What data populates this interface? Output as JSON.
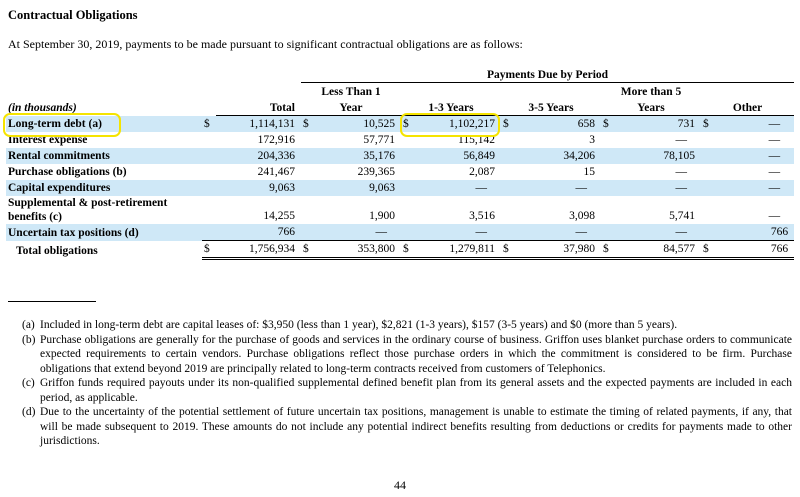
{
  "heading": "Contractual Obligations",
  "intro": "At September 30, 2019, payments to be made pursuant to significant contractual obligations are as follows:",
  "table": {
    "group_header": "Payments Due by Period",
    "units_label": "(in thousands)",
    "columns": {
      "total": "Total",
      "lt1_line1": "Less Than 1",
      "lt1_line2": "Year",
      "y13": "1-3 Years",
      "y35": "3-5 Years",
      "mt5_line1": "More than 5",
      "mt5_line2": "Years",
      "other": "Other"
    },
    "currency": "$",
    "rows": [
      {
        "label": "Long-term debt (a)",
        "total": "1,114,131",
        "lt1": "10,525",
        "y13": "1,102,217",
        "y35": "658",
        "mt5": "731",
        "other": "—"
      },
      {
        "label": "Interest expense",
        "total": "172,916",
        "lt1": "57,771",
        "y13": "115,142",
        "y35": "3",
        "mt5": "—",
        "other": "—"
      },
      {
        "label": "Rental commitments",
        "total": "204,336",
        "lt1": "35,176",
        "y13": "56,849",
        "y35": "34,206",
        "mt5": "78,105",
        "other": "—"
      },
      {
        "label": "Purchase obligations (b)",
        "total": "241,467",
        "lt1": "239,365",
        "y13": "2,087",
        "y35": "15",
        "mt5": "—",
        "other": "—"
      },
      {
        "label": "Capital expenditures",
        "total": "9,063",
        "lt1": "9,063",
        "y13": "—",
        "y35": "—",
        "mt5": "—",
        "other": "—"
      },
      {
        "label": "Supplemental & post-retirement benefits (c)",
        "total": "14,255",
        "lt1": "1,900",
        "y13": "3,516",
        "y35": "3,098",
        "mt5": "5,741",
        "other": "—"
      },
      {
        "label": "Uncertain tax positions (d)",
        "total": "766",
        "lt1": "—",
        "y13": "—",
        "y35": "—",
        "mt5": "—",
        "other": "766"
      },
      {
        "label": "Total obligations",
        "total": "1,756,934",
        "lt1": "353,800",
        "y13": "1,279,811",
        "y35": "37,980",
        "mt5": "84,577",
        "other": "766"
      }
    ]
  },
  "notes": [
    {
      "marker": "(a)",
      "text": "Included in long-term debt are capital leases of: $3,950 (less than 1 year), $2,821 (1-3 years), $157 (3-5 years) and $0 (more than 5 years)."
    },
    {
      "marker": "(b)",
      "text": "Purchase obligations are generally for the purchase of goods and services in the ordinary course of business. Griffon uses blanket purchase orders to communicate expected requirements to certain vendors. Purchase obligations reflect those purchase orders in which the commitment is considered to be firm. Purchase obligations that extend beyond 2019 are principally related to long-term contracts received from customers of Telephonics."
    },
    {
      "marker": "(c)",
      "text": "Griffon funds required payouts under its non-qualified supplemental defined benefit plan from its general assets and the expected payments are included in each period, as applicable."
    },
    {
      "marker": "(d)",
      "text": "Due to the uncertainty of the potential settlement of future uncertain tax positions, management is unable to estimate the timing of related payments, if any, that will be made subsequent to 2019. These amounts do not include any potential indirect benefits resulting from deductions or credits for payments made to other jurisdictions."
    }
  ],
  "page_number": "44",
  "colors": {
    "row_shade": "#cfe8f7",
    "highlight": "#f5e400"
  }
}
